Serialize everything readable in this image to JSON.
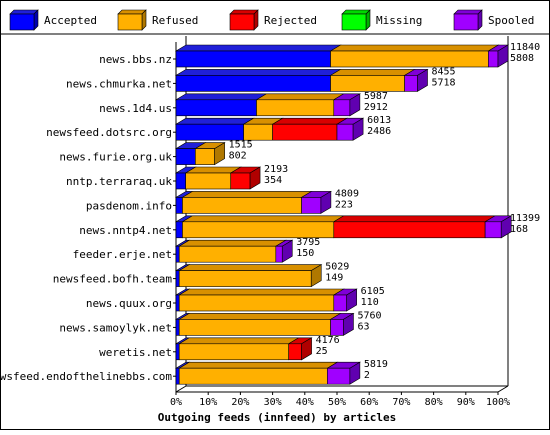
{
  "chart_data": {
    "type": "bar",
    "orientation": "horizontal",
    "stacked": true,
    "style": "3d",
    "xlabel": "Outgoing feeds (innfeed) by articles",
    "xlim": [
      0,
      100
    ],
    "x_ticks": [
      "0%",
      "10%",
      "20%",
      "30%",
      "40%",
      "50%",
      "60%",
      "70%",
      "80%",
      "90%",
      "100%"
    ],
    "legend_position": "top",
    "series": [
      {
        "name": "Accepted",
        "color": "#0000ff",
        "side_color": "#0000b0",
        "top_color": "#2020d8"
      },
      {
        "name": "Refused",
        "color": "#ffb000",
        "side_color": "#b07800",
        "top_color": "#d89000"
      },
      {
        "name": "Rejected",
        "color": "#ff0000",
        "side_color": "#b00000",
        "top_color": "#d80000"
      },
      {
        "name": "Missing",
        "color": "#00ff00",
        "side_color": "#00b000",
        "top_color": "#00d800"
      },
      {
        "name": "Spooled",
        "color": "#a000ff",
        "side_color": "#6000b0",
        "top_color": "#8000d8"
      }
    ],
    "rows": [
      {
        "name": "news.bbs.nz",
        "offered": "11840",
        "second_value": "5808",
        "percent": [
          48,
          49,
          0,
          0,
          3
        ]
      },
      {
        "name": "news.chmurka.net",
        "offered": "8455",
        "second_value": "5718",
        "percent": [
          48,
          23,
          0,
          0,
          4
        ]
      },
      {
        "name": "news.1d4.us",
        "offered": "5987",
        "second_value": "2912",
        "percent": [
          25,
          24,
          0,
          0,
          5
        ]
      },
      {
        "name": "newsfeed.dotsrc.org",
        "offered": "6013",
        "second_value": "2486",
        "percent": [
          21,
          9,
          20,
          0,
          5
        ]
      },
      {
        "name": "news.furie.org.uk",
        "offered": "1515",
        "second_value": "802",
        "percent": [
          6,
          6,
          0,
          0,
          0
        ]
      },
      {
        "name": "nntp.terraraq.uk",
        "offered": "2193",
        "second_value": "354",
        "percent": [
          3,
          14,
          6,
          0,
          0
        ]
      },
      {
        "name": "pasdenom.info",
        "offered": "4809",
        "second_value": "223",
        "percent": [
          2,
          37,
          0,
          0,
          6
        ]
      },
      {
        "name": "news.nntp4.net",
        "offered": "11399",
        "second_value": "168",
        "percent": [
          2,
          47,
          47,
          0,
          5
        ]
      },
      {
        "name": "feeder.erje.net",
        "offered": "3795",
        "second_value": "150",
        "percent": [
          1,
          30,
          0,
          0,
          2
        ]
      },
      {
        "name": "newsfeed.bofh.team",
        "offered": "5029",
        "second_value": "149",
        "percent": [
          1,
          41,
          0,
          0,
          0
        ]
      },
      {
        "name": "news.quux.org",
        "offered": "6105",
        "second_value": "110",
        "percent": [
          1,
          48,
          0,
          0,
          4
        ]
      },
      {
        "name": "news.samoylyk.net",
        "offered": "5760",
        "second_value": "63",
        "percent": [
          1,
          47,
          0,
          0,
          4
        ]
      },
      {
        "name": "weretis.net",
        "offered": "4176",
        "second_value": "25",
        "percent": [
          1,
          34,
          4,
          0,
          0
        ]
      },
      {
        "name": "newsfeed.endofthelinebbs.com",
        "offered": "5819",
        "second_value": "2",
        "percent": [
          1,
          46,
          0,
          0,
          7
        ]
      }
    ]
  }
}
